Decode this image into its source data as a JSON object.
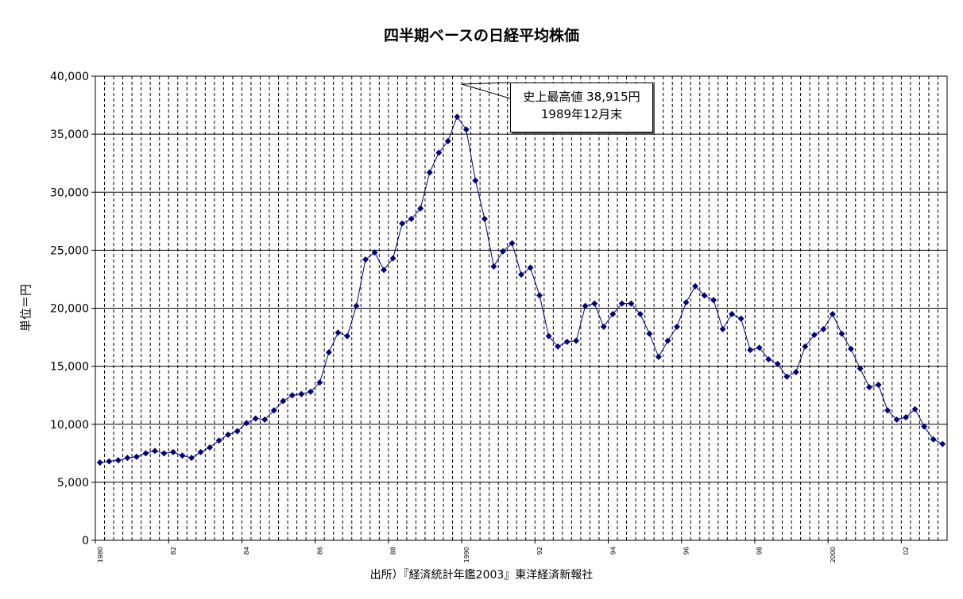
{
  "chart_data": {
    "type": "line",
    "title": "四半期ベースの日経平均株価",
    "ylabel": "単位＝円",
    "xlabel": "",
    "source": "出所）『経済統計年鑑2003』東洋経済新報社",
    "ylim": [
      0,
      40000
    ],
    "yticks": [
      "0",
      "5,000",
      "10,000",
      "15,000",
      "20,000",
      "25,000",
      "30,000",
      "35,000",
      "40,000"
    ],
    "year_labels": [
      {
        "q": 0,
        "label": "1980"
      },
      {
        "q": 8,
        "label": "82"
      },
      {
        "q": 16,
        "label": "84"
      },
      {
        "q": 24,
        "label": "86"
      },
      {
        "q": 32,
        "label": "88"
      },
      {
        "q": 40,
        "label": "1990"
      },
      {
        "q": 48,
        "label": "92"
      },
      {
        "q": 56,
        "label": "94"
      },
      {
        "q": 64,
        "label": "96"
      },
      {
        "q": 72,
        "label": "98"
      },
      {
        "q": 80,
        "label": "2000"
      },
      {
        "q": 88,
        "label": "02"
      }
    ],
    "x_start": "1980 Q1",
    "x_unit": "quarter",
    "grid": true,
    "legend": "none",
    "marker_color": "#000080",
    "line_color": "#000080",
    "annotation": {
      "line1": "史上最高値 38,915円",
      "line2": "1989年12月末"
    },
    "series": [
      {
        "values": [
          6700,
          6800,
          6900,
          7100,
          7200,
          7500,
          7700,
          7500,
          7600,
          7300,
          7100,
          7600,
          8000,
          8600,
          9100,
          9400,
          10100,
          10500,
          10400,
          11200,
          12000,
          12500,
          12600,
          12800,
          13600,
          16200,
          17900,
          17600,
          20200,
          24200,
          24800,
          23300,
          24300,
          27300,
          27700,
          28600,
          31700,
          33400,
          34400,
          36500,
          35400,
          31000,
          27700,
          23600,
          24900,
          25600,
          22900,
          23500,
          21100,
          17600,
          16700,
          17100,
          17200,
          20200,
          20400,
          18400,
          19500,
          20400,
          20400,
          19500,
          17800,
          15800,
          17200,
          18400,
          20500,
          21900,
          21100,
          20700,
          18200,
          19500,
          19100,
          16400,
          16600,
          15600,
          15200,
          14100,
          14500,
          16700,
          17700,
          18200,
          19500,
          17800,
          16500,
          14800,
          13200,
          13400,
          11200,
          10400,
          10600,
          11300,
          9800,
          8700,
          8300
        ]
      }
    ]
  }
}
